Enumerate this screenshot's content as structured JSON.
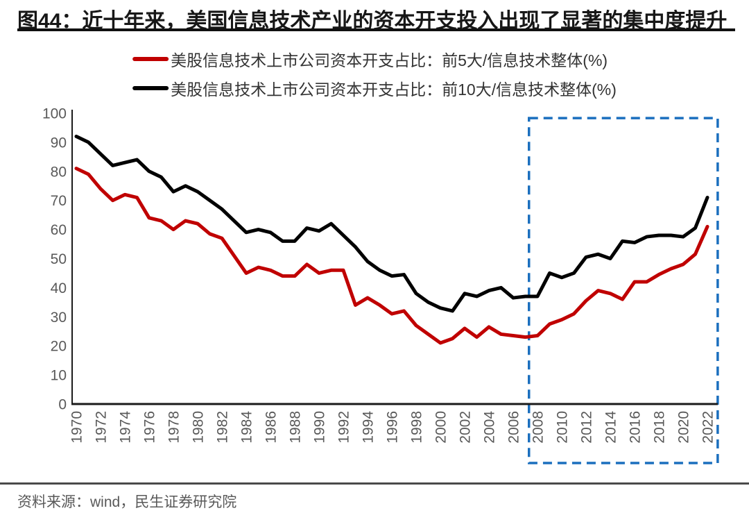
{
  "title": "图44：近十年来，美国信息技术产业的资本开支投入出现了显著的集中度提升",
  "source": "资料来源：wind，民生证券研究院",
  "legend": {
    "items": [
      {
        "label": "美股信息技术上市公司资本开支占比：前5大/信息技术整体(%)",
        "color": "#c00000"
      },
      {
        "label": "美股信息技术上市公司资本开支占比：前10大/信息技术整体(%)",
        "color": "#000000"
      }
    ]
  },
  "colors": {
    "series_top5": "#c00000",
    "series_top10": "#000000",
    "highlight_box": "#1b6fbe",
    "tick_label": "#595959",
    "axis": "#1a1a1a",
    "divider": "#4a4a4a"
  },
  "chart_data": {
    "type": "line",
    "title": "图44：近十年来，美国信息技术产业的资本开支投入出现了显著的集中度提升",
    "xlabel": "",
    "ylabel": "",
    "grid": false,
    "legend_position": "top",
    "ylim": [
      0,
      100
    ],
    "y_tick_step": 10,
    "x_tick_step": 2,
    "x_tick_rotation": -90,
    "x": [
      1970,
      1971,
      1972,
      1973,
      1974,
      1975,
      1976,
      1977,
      1978,
      1979,
      1980,
      1981,
      1982,
      1983,
      1984,
      1985,
      1986,
      1987,
      1988,
      1989,
      1990,
      1991,
      1992,
      1993,
      1994,
      1995,
      1996,
      1997,
      1998,
      1999,
      2000,
      2001,
      2002,
      2003,
      2004,
      2005,
      2006,
      2007,
      2008,
      2009,
      2010,
      2011,
      2012,
      2013,
      2014,
      2015,
      2016,
      2017,
      2018,
      2019,
      2020,
      2021,
      2022
    ],
    "series": [
      {
        "name": "美股信息技术上市公司资本开支占比：前5大/信息技术整体(%)",
        "color": "#c00000",
        "values": [
          81,
          79,
          74,
          70,
          72,
          71,
          64,
          63,
          60,
          63,
          62,
          58.5,
          57,
          51,
          45,
          47,
          46,
          44,
          44,
          48,
          45,
          46,
          46,
          34,
          36.5,
          34,
          31,
          32,
          27,
          24,
          21,
          22.5,
          26,
          23,
          26.5,
          24,
          23.5,
          23,
          23.5,
          27.5,
          29,
          31,
          35.5,
          39,
          38,
          36,
          42,
          42,
          44.5,
          46.5,
          48,
          51.5,
          61
        ]
      },
      {
        "name": "美股信息技术上市公司资本开支占比：前10大/信息技术整体(%)",
        "color": "#000000",
        "values": [
          92,
          90,
          86,
          82,
          83,
          84,
          80,
          78,
          73,
          75,
          73,
          70,
          67,
          63,
          59,
          60,
          59,
          56,
          56,
          60.5,
          59.5,
          62,
          58,
          54,
          49,
          46,
          44,
          44.5,
          38,
          35,
          33,
          32,
          38,
          37,
          39,
          40,
          36.5,
          37,
          37,
          45,
          43.5,
          45,
          50.5,
          51.5,
          50,
          56,
          55.5,
          57.5,
          58,
          58,
          57.5,
          60.5,
          71
        ]
      }
    ],
    "highlight_box": {
      "x0": 2007.3,
      "x1": 2022.85,
      "y0": -20.3,
      "y1": 98.3,
      "style": "dashed",
      "color": "#1b6fbe",
      "covers_years": "2008-2022"
    }
  }
}
